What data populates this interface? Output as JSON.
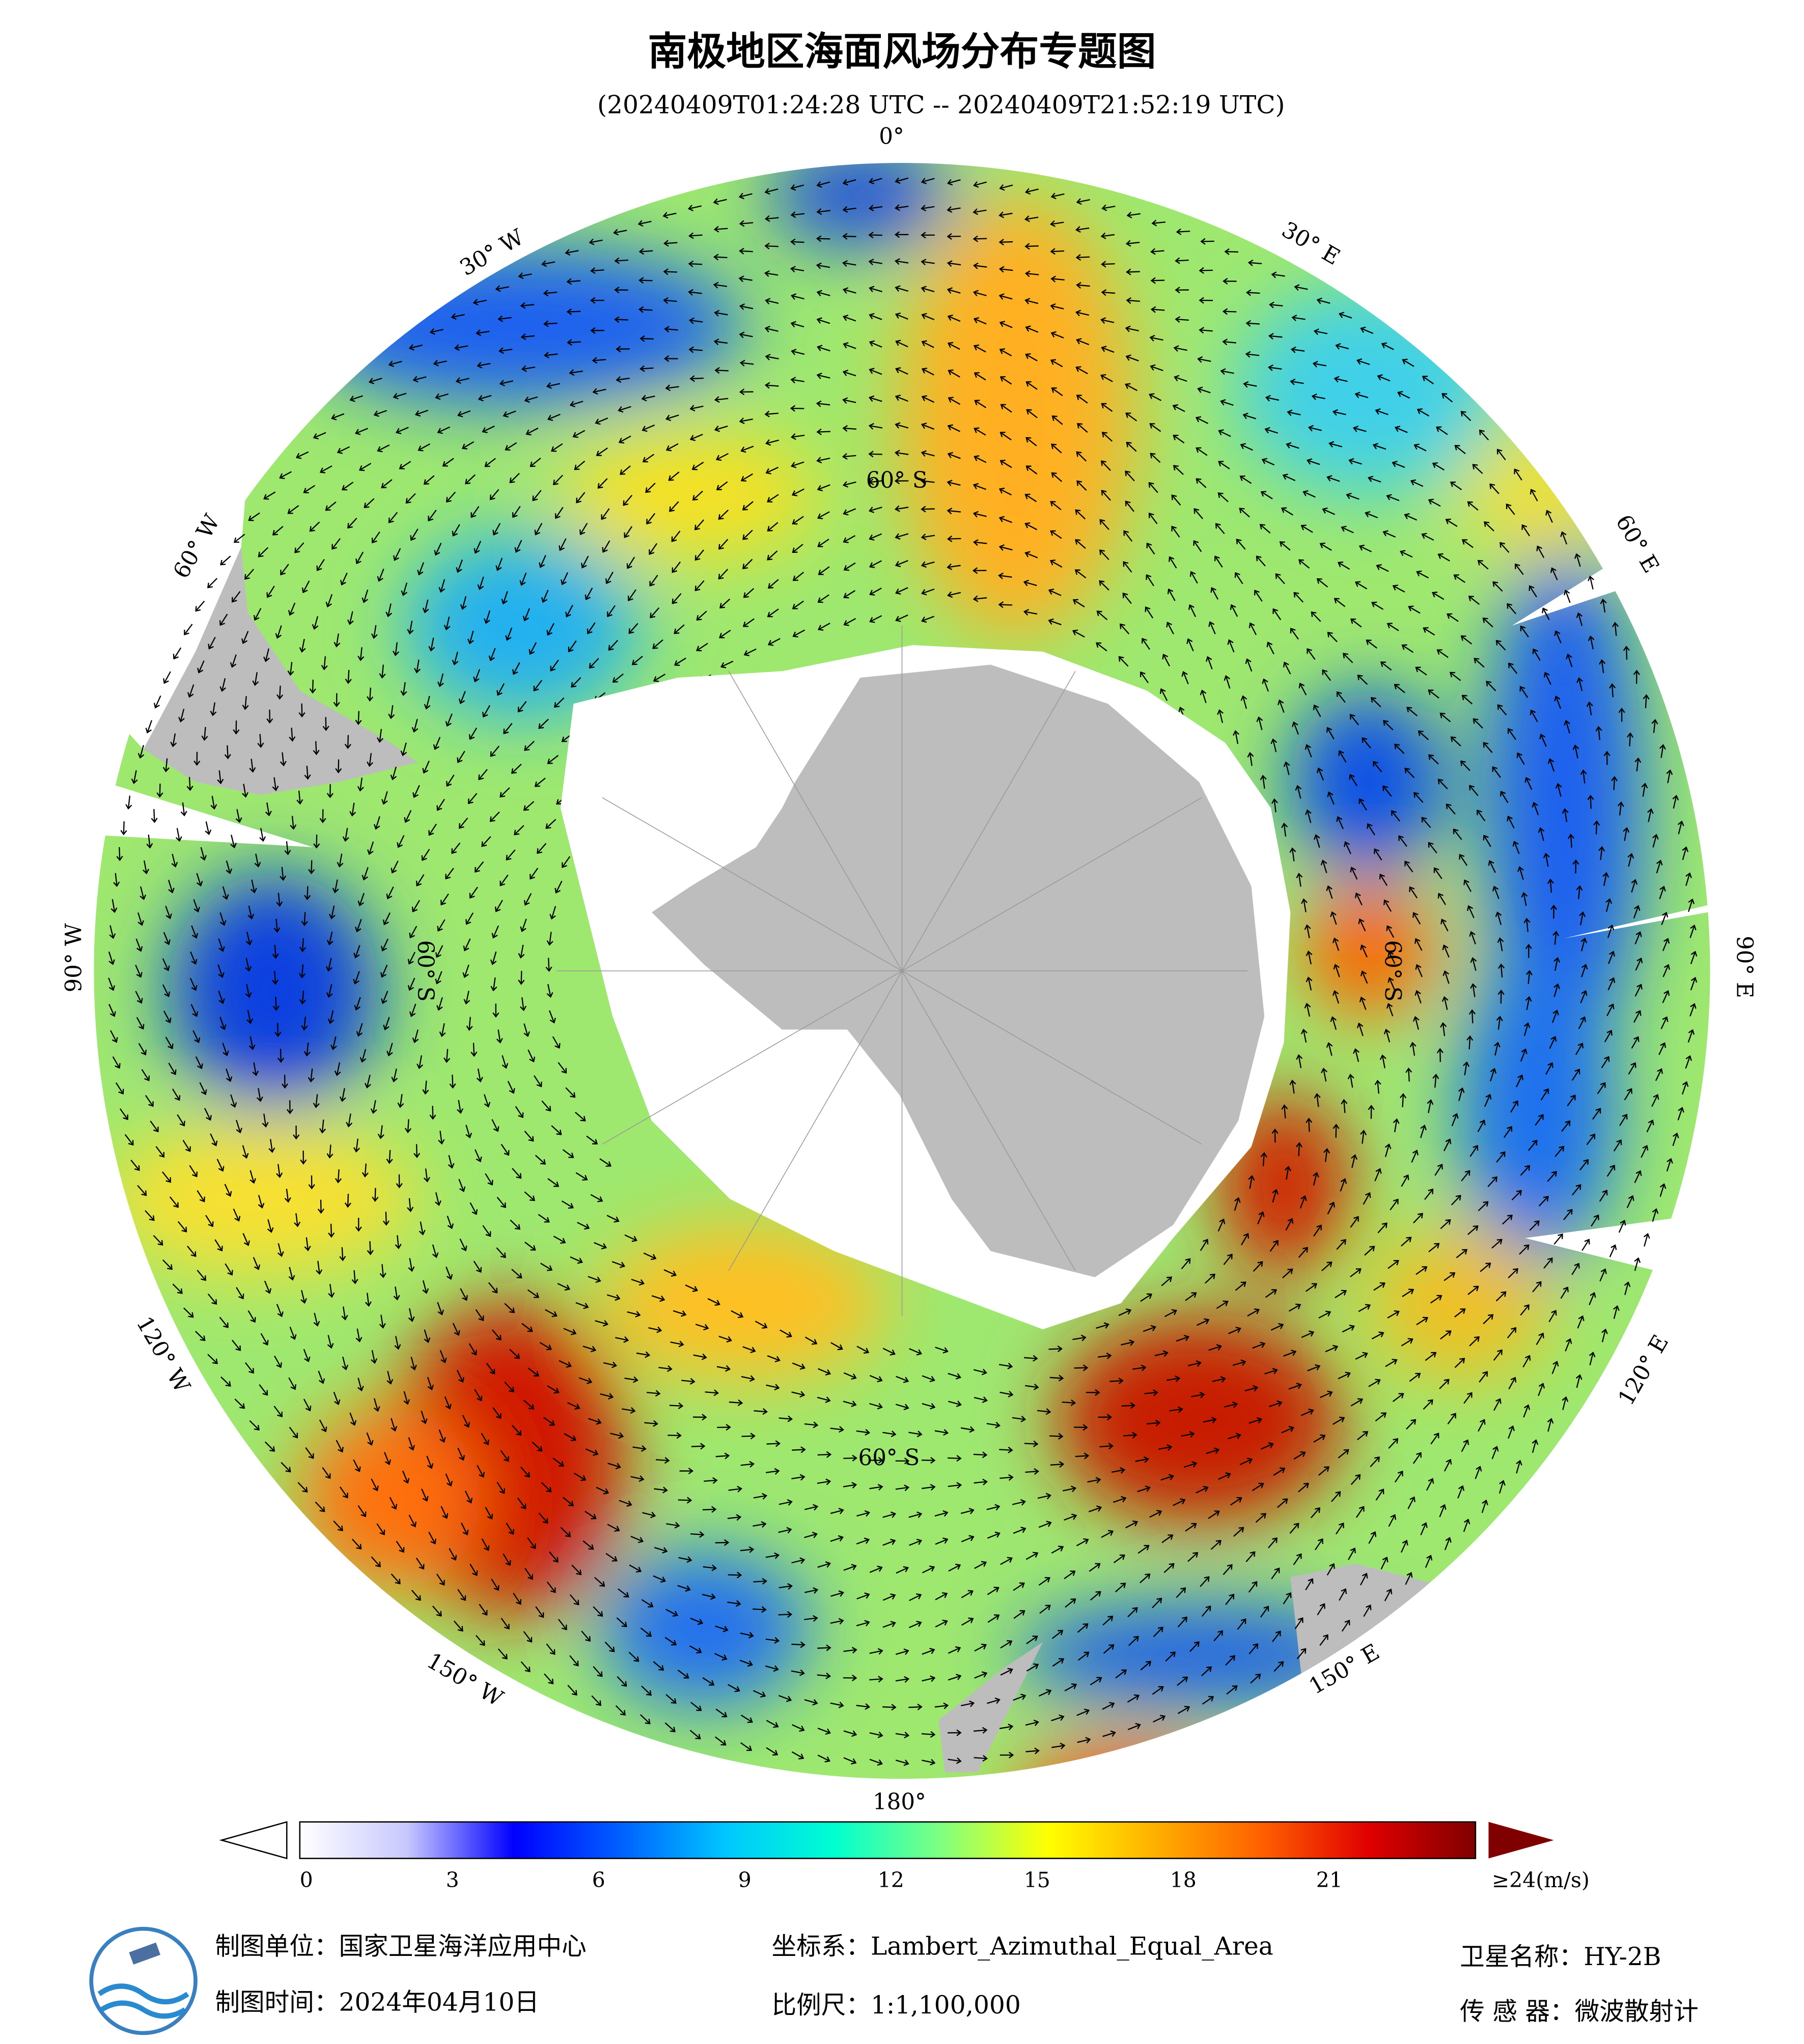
{
  "header": {
    "title": "南极地区海面风场分布专题图",
    "subtitle": "(20240409T01:24:28 UTC -- 20240409T21:52:19 UTC)"
  },
  "map": {
    "longitude_labels": [
      "0°",
      "30° E",
      "60° E",
      "90° E",
      "120° E",
      "150° E",
      "180°",
      "150° W",
      "120° W",
      "90° W",
      "60° W",
      "30° W"
    ],
    "latitude_labels": [
      "60° S",
      "60° S",
      "60° S",
      "60° S"
    ]
  },
  "colorbar": {
    "range": [
      0,
      24
    ],
    "ticks": [
      0,
      3,
      6,
      9,
      12,
      15,
      18,
      21,
      {
        "value": 24,
        "label": "≥24(m/s)"
      }
    ],
    "colors": [
      "#ffffff",
      "#c8c8ff",
      "#0000ff",
      "#0060ff",
      "#00c8ff",
      "#00ffd0",
      "#80ff80",
      "#ffff00",
      "#ffb000",
      "#ff6000",
      "#e00000",
      "#800000"
    ]
  },
  "footer": {
    "unit": "制图单位：国家卫星海洋应用中心",
    "date": "制图时间：2024年04月10日",
    "crs": "坐标系：Lambert_Azimuthal_Equal_Area",
    "scale": "比例尺：1:1,100,000",
    "satellite": "卫星名称：HY-2B",
    "sensor": "传 感 器：微波散射计"
  }
}
